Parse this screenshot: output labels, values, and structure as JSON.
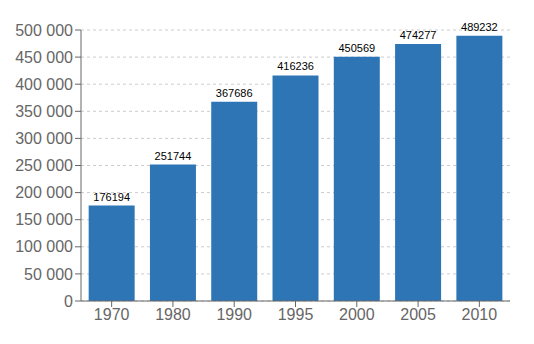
{
  "chart_data": {
    "type": "bar",
    "categories": [
      "1970",
      "1980",
      "1990",
      "1995",
      "2000",
      "2005",
      "2010"
    ],
    "values": [
      176194,
      251744,
      367686,
      416236,
      450569,
      474277,
      489232
    ],
    "color": "#2E75B6",
    "ylim": [
      0,
      500000
    ],
    "yticks": [
      0,
      {
        "value": 50000,
        "label": "50 000"
      },
      {
        "value": 100000,
        "label": "100 000"
      },
      {
        "value": 150000,
        "label": "150 000"
      },
      {
        "value": 200000,
        "label": "200 000"
      },
      {
        "value": 250000,
        "label": "250 000"
      },
      {
        "value": 300000,
        "label": "300 000"
      },
      {
        "value": 350000,
        "label": "350 000"
      },
      {
        "value": 400000,
        "label": "400 000"
      },
      {
        "value": 450000,
        "label": "450 000"
      },
      {
        "value": 500000,
        "label": "500 000"
      }
    ],
    "grid": true,
    "data_labels": true
  }
}
